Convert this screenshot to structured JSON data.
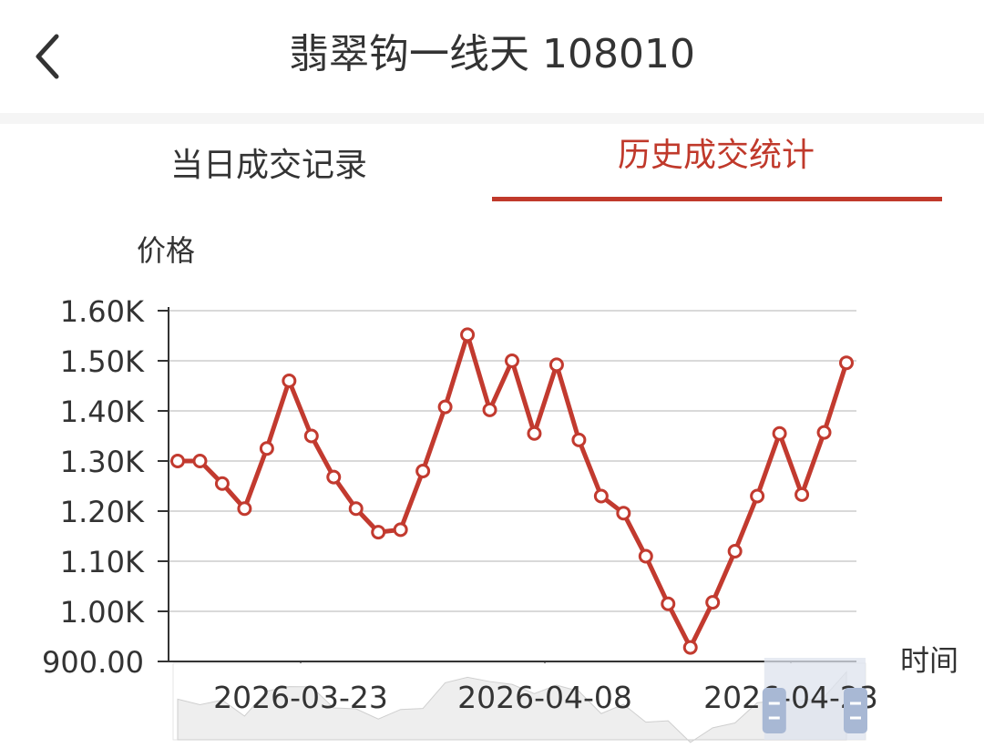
{
  "header": {
    "title": "翡翠钩一线天 108010",
    "back_icon": "chevron-left-icon"
  },
  "tabs": [
    {
      "label": "当日成交记录",
      "active": false
    },
    {
      "label": "历史成交统计",
      "active": true
    }
  ],
  "colors": {
    "accent": "#c0392b",
    "line": "#c23a2f",
    "grid": "#d9d9d9",
    "zoom_fill": "#dde3ee",
    "zoom_handle": "#a8b8d4"
  },
  "chart_data": {
    "type": "line",
    "ylabel": "价格",
    "xlabel": "时间",
    "ylim": [
      900,
      1600
    ],
    "yticks": [
      "900.00",
      "1.00K",
      "1.10K",
      "1.20K",
      "1.30K",
      "1.40K",
      "1.50K",
      "1.60K"
    ],
    "xticks": [
      "2026-03-23",
      "2026-04-08",
      "2026-04-23"
    ],
    "grid": true,
    "series": [
      {
        "values": [
          1300,
          1300,
          1255,
          1205,
          1325,
          1460,
          1350,
          1268,
          1205,
          1158,
          1163,
          1280,
          1408,
          1552,
          1402,
          1500,
          1355,
          1492,
          1342,
          1230,
          1196,
          1110,
          1015,
          928,
          1018,
          1120,
          1230,
          1355,
          1233,
          1357,
          1496
        ]
      }
    ],
    "data_zoom": {
      "visible": true,
      "start_fraction": 0.88,
      "end_fraction": 1.0
    }
  }
}
